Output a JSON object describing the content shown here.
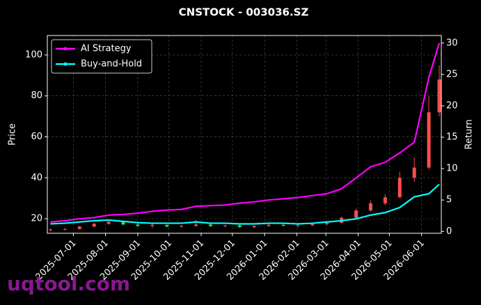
{
  "chart_data": {
    "type": "candlestick",
    "title": "CNSTOCK - 003036.SZ",
    "y_label": "Price",
    "y2_label": "Return",
    "watermark": "uqtool.com",
    "x": [
      "2025-06-09",
      "2025-06-23",
      "2025-07-07",
      "2025-07-21",
      "2025-08-04",
      "2025-08-18",
      "2025-09-01",
      "2025-09-15",
      "2025-09-29",
      "2025-10-13",
      "2025-10-27",
      "2025-11-10",
      "2025-11-24",
      "2025-12-08",
      "2025-12-22",
      "2026-01-05",
      "2026-01-19",
      "2026-02-02",
      "2026-02-16",
      "2026-03-02",
      "2026-03-16",
      "2026-03-30",
      "2026-04-13",
      "2026-04-27",
      "2026-05-11",
      "2026-05-25",
      "2026-06-08",
      "2026-06-18"
    ],
    "ohlc": {
      "up_color": "#ff4d4d",
      "down_color": "#33dd55",
      "open": [
        14.5,
        14.8,
        15.0,
        16.2,
        17.5,
        18.5,
        17.2,
        16.5,
        17.0,
        16.2,
        16.5,
        17.2,
        16.4,
        16.8,
        15.9,
        16.5,
        17.0,
        16.6,
        16.8,
        17.4,
        18.0,
        20.5,
        24.0,
        27.5,
        30.5,
        40.0,
        45.0,
        72.0
      ],
      "high": [
        15.2,
        15.5,
        16.5,
        18.0,
        19.5,
        19.0,
        18.0,
        17.5,
        17.2,
        17.0,
        19.5,
        17.8,
        17.0,
        17.2,
        16.8,
        17.5,
        17.6,
        17.2,
        17.8,
        18.5,
        21.0,
        25.0,
        29.0,
        32.0,
        43.0,
        50.0,
        80.0,
        95.0
      ],
      "low": [
        13.8,
        14.2,
        14.8,
        15.8,
        17.0,
        16.8,
        16.0,
        15.5,
        15.8,
        15.6,
        16.2,
        16.0,
        15.8,
        15.5,
        15.4,
        16.0,
        16.2,
        15.8,
        16.5,
        16.8,
        17.8,
        20.0,
        23.5,
        26.5,
        30.0,
        38.0,
        44.0,
        70.0
      ],
      "close": [
        14.8,
        15.0,
        16.2,
        17.5,
        18.5,
        17.2,
        16.5,
        17.0,
        16.2,
        16.5,
        17.2,
        16.4,
        16.8,
        15.9,
        16.5,
        17.0,
        16.6,
        16.8,
        17.4,
        18.0,
        20.5,
        24.0,
        27.5,
        30.5,
        40.0,
        45.0,
        72.0,
        88.0
      ]
    },
    "series": [
      {
        "name": "AI Strategy",
        "color": "#ff00ff",
        "axis": "y2",
        "values": [
          1.5,
          1.7,
          2.0,
          2.2,
          2.6,
          2.7,
          2.9,
          3.2,
          3.4,
          3.5,
          4.0,
          4.1,
          4.2,
          4.5,
          4.7,
          5.0,
          5.2,
          5.4,
          5.7,
          6.0,
          6.8,
          8.5,
          10.3,
          11.0,
          12.5,
          14.2,
          24.5,
          30.0
        ]
      },
      {
        "name": "Buy-and-Hold",
        "color": "#00ffff",
        "axis": "y2",
        "values": [
          1.2,
          1.3,
          1.5,
          1.7,
          1.8,
          1.6,
          1.4,
          1.3,
          1.3,
          1.3,
          1.5,
          1.3,
          1.3,
          1.2,
          1.2,
          1.3,
          1.3,
          1.2,
          1.3,
          1.5,
          1.7,
          2.0,
          2.6,
          3.0,
          3.8,
          5.5,
          6.0,
          7.5
        ]
      }
    ],
    "xlim": [
      "2025-06-06",
      "2026-06-20"
    ],
    "xticks": [
      "2025-07-01",
      "2025-08-01",
      "2025-09-01",
      "2025-10-01",
      "2025-11-01",
      "2025-12-01",
      "2026-01-01",
      "2026-02-01",
      "2026-03-01",
      "2026-04-01",
      "2026-05-01",
      "2026-06-01"
    ],
    "ylim": [
      12.9,
      109.5
    ],
    "yticks": [
      20,
      40,
      60,
      80,
      100
    ],
    "y2lim": [
      -0.3,
      31.2
    ],
    "y2ticks": [
      0,
      5,
      10,
      15,
      20,
      25,
      30
    ],
    "grid": true,
    "legend": "upper left"
  }
}
